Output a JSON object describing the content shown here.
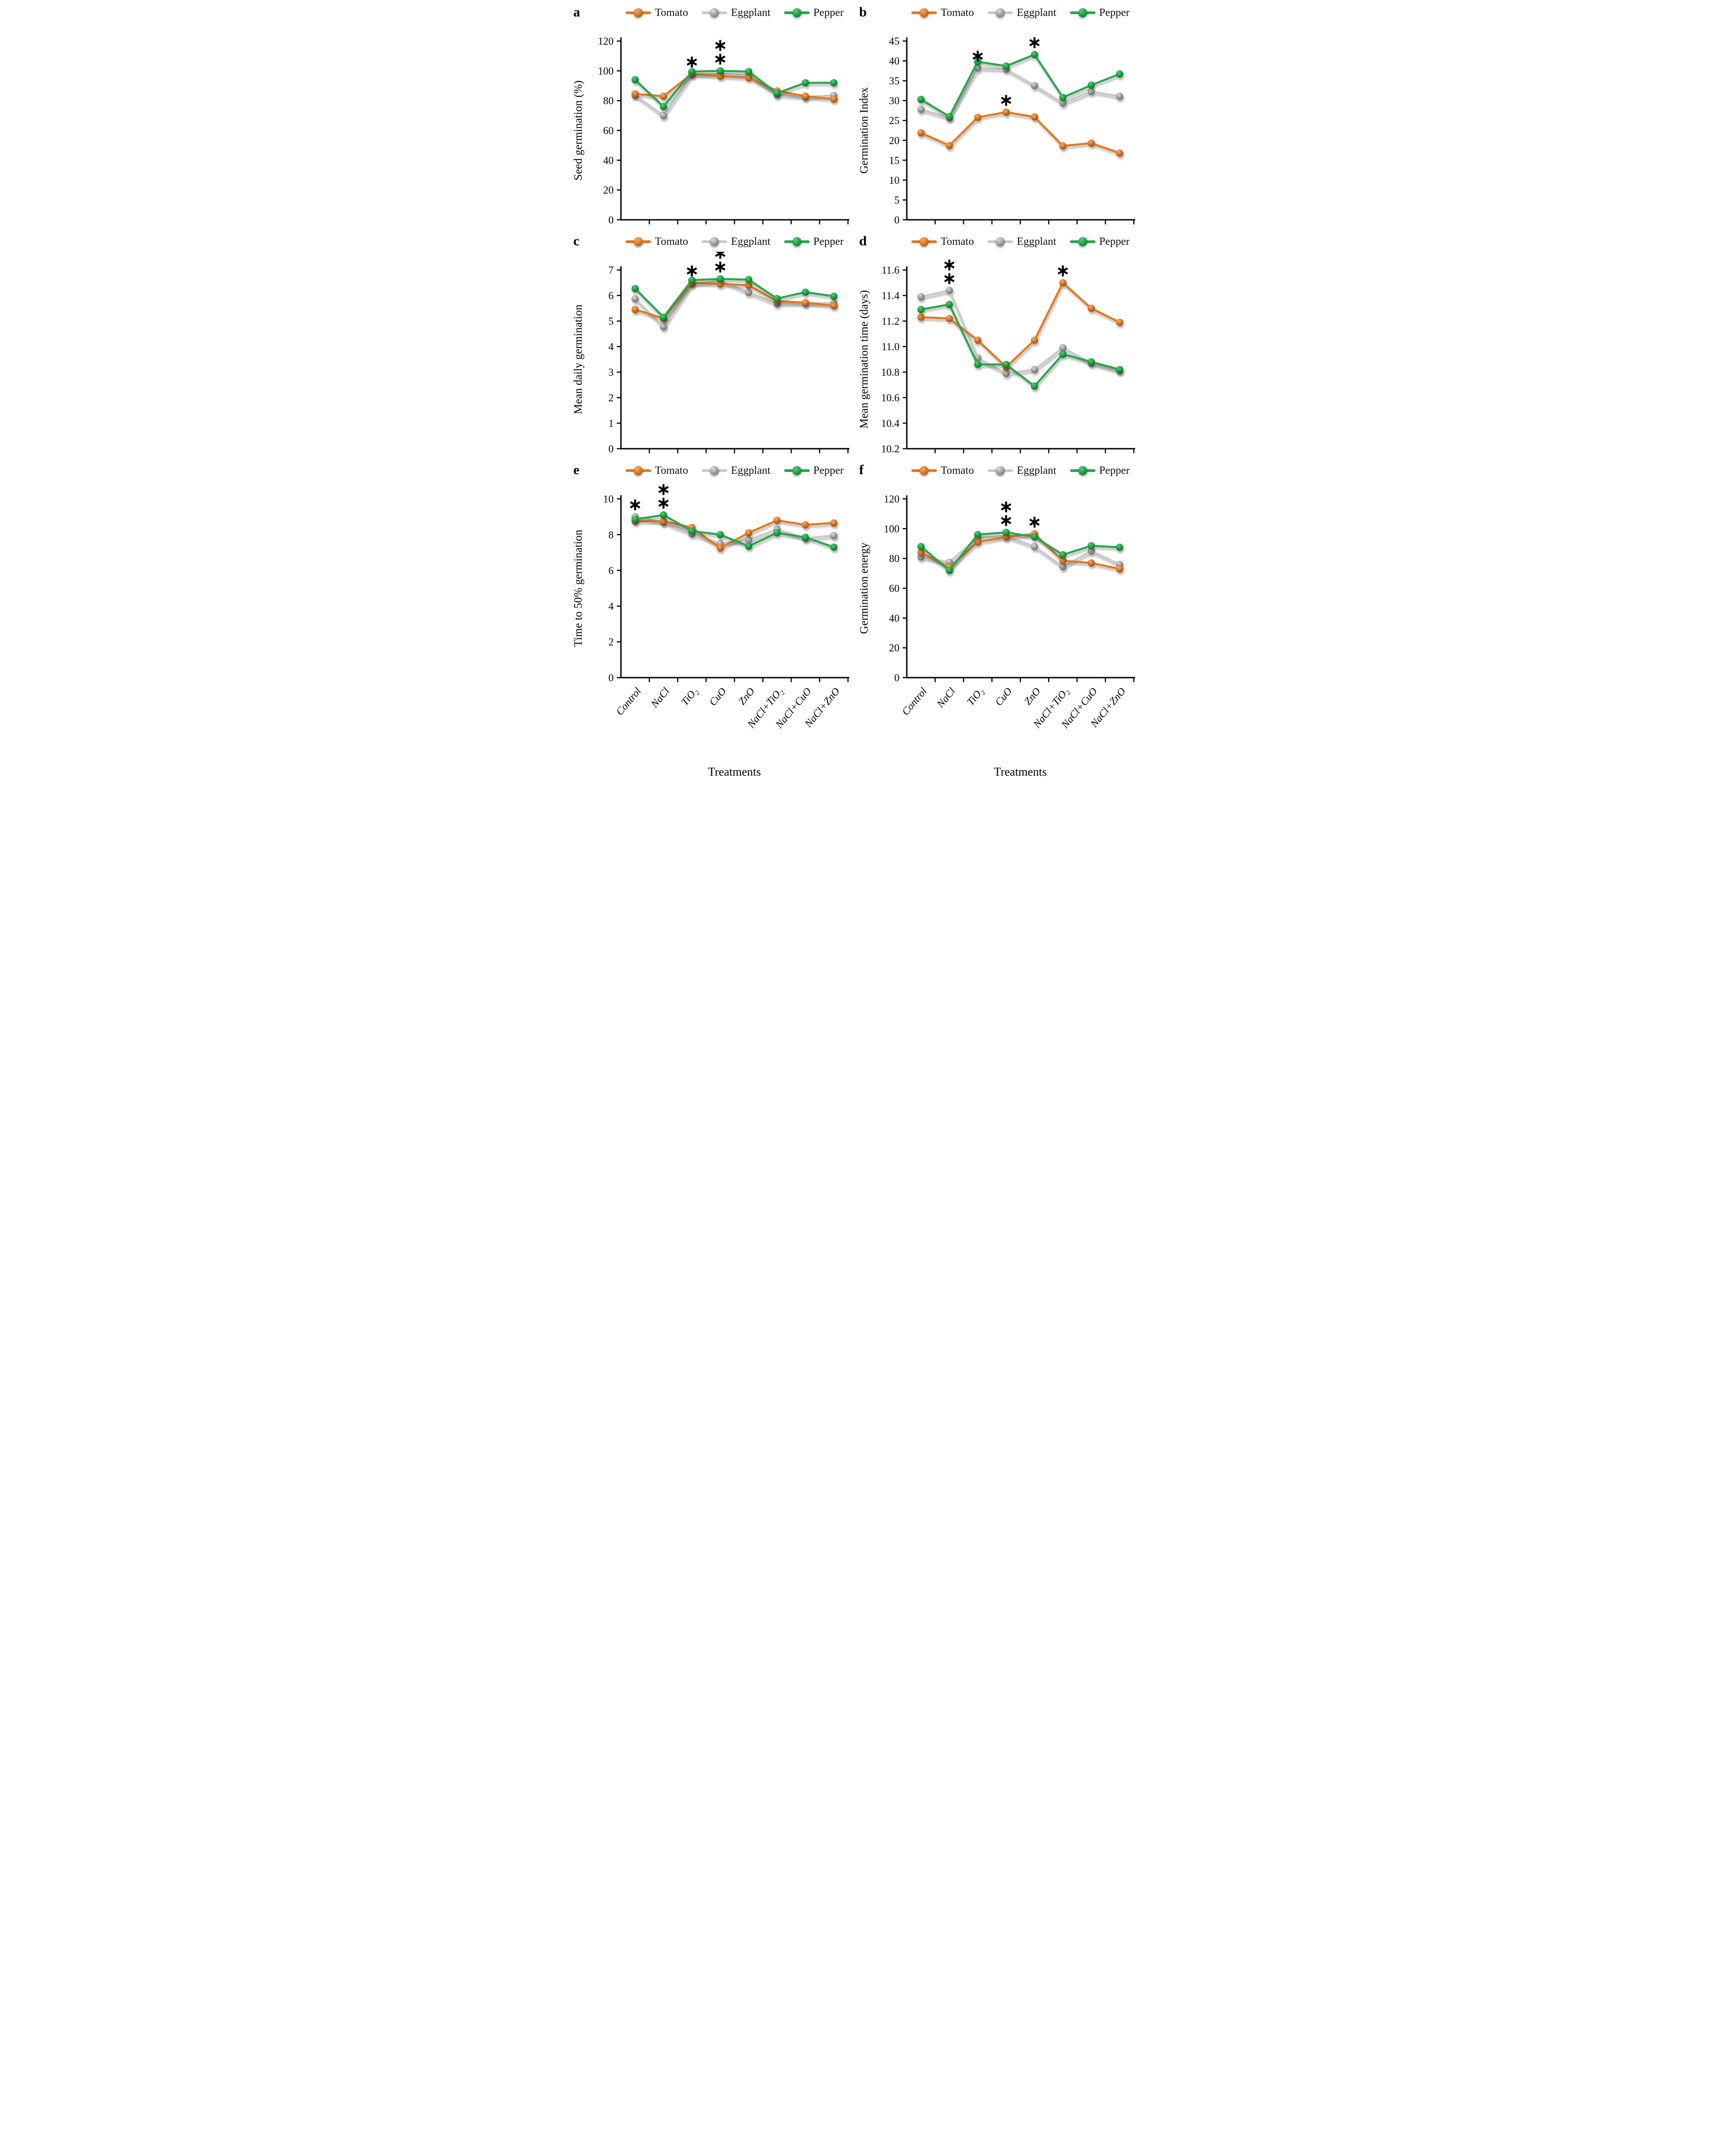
{
  "figure": {
    "xlabel": "Treatments",
    "categories": [
      "Control",
      "NaCl",
      "TiO₂",
      "CuO",
      "ZnO",
      "NaCl+TiO₂",
      "NaCl+CuO",
      "NaCl+ZnO"
    ],
    "legend": [
      "Tomato",
      "Eggplant",
      "Pepper"
    ],
    "asterisk_glyph": "∗",
    "colors": {
      "axis": "#000000",
      "text": "#111111",
      "tomato": {
        "line": "#E2791F",
        "marker_hi": "#F4AC6B",
        "marker_mid": "#D9731F",
        "marker_dark": "#8F4710",
        "asterisk": "#E2791F"
      },
      "eggplant": {
        "line": "#C9C9C9",
        "marker_hi": "#DCDCDC",
        "marker_mid": "#999999",
        "marker_dark": "#666666",
        "asterisk": "#A6A6A6"
      },
      "pepper": {
        "line": "#29A64B",
        "marker_hi": "#5FC77F",
        "marker_mid": "#17A03C",
        "marker_dark": "#0B6E27",
        "asterisk": "#2BA24A"
      }
    }
  },
  "chart_data": [
    {
      "panel": "a",
      "type": "line",
      "title": "",
      "ylabel": "Seed germination (%)",
      "ylim": [
        0,
        120
      ],
      "yticks": [
        0,
        20,
        40,
        60,
        80,
        100,
        120
      ],
      "ytick_labels": [
        "0",
        "20",
        "40",
        "60",
        "80",
        "100",
        "120"
      ],
      "show_x_labels": false,
      "series": [
        {
          "name": "Tomato",
          "color_key": "tomato",
          "values": [
            84.5,
            83,
            98,
            96.5,
            95.5,
            86.5,
            83,
            81
          ]
        },
        {
          "name": "Eggplant",
          "color_key": "eggplant",
          "values": [
            83.5,
            70,
            97.5,
            98,
            97,
            84,
            82.5,
            83.5
          ]
        },
        {
          "name": "Pepper",
          "color_key": "pepper",
          "values": [
            94,
            76,
            99.5,
            100,
            99.5,
            85,
            92,
            92
          ]
        }
      ],
      "annotations": [
        {
          "category": "TiO₂",
          "cat_index": 2,
          "stack": [
            "tomato"
          ]
        },
        {
          "category": "CuO",
          "cat_index": 3,
          "stack": [
            "eggplant",
            "pepper"
          ]
        }
      ]
    },
    {
      "panel": "b",
      "type": "line",
      "title": "",
      "ylabel": "Germination Index",
      "ylim": [
        0,
        45
      ],
      "yticks": [
        0,
        5,
        10,
        15,
        20,
        25,
        30,
        35,
        40,
        45
      ],
      "ytick_labels": [
        "0",
        "5",
        "10",
        "15",
        "20",
        "25",
        "30",
        "35",
        "40",
        "45"
      ],
      "show_x_labels": false,
      "series": [
        {
          "name": "Tomato",
          "color_key": "tomato",
          "values": [
            21.9,
            18.7,
            25.8,
            27.1,
            25.9,
            18.6,
            19.3,
            16.8
          ]
        },
        {
          "name": "Eggplant",
          "color_key": "eggplant",
          "values": [
            27.8,
            25.7,
            38.2,
            37.9,
            33.8,
            29.4,
            32.3,
            31.1
          ]
        },
        {
          "name": "Pepper",
          "color_key": "pepper",
          "values": [
            30.3,
            26.0,
            39.8,
            38.7,
            41.6,
            30.8,
            33.9,
            36.7
          ]
        }
      ],
      "annotations": [
        {
          "category": "TiO₂",
          "cat_index": 2,
          "stack": [
            "eggplant"
          ]
        },
        {
          "category": "CuO",
          "cat_index": 3,
          "stack": [
            "tomato"
          ]
        },
        {
          "category": "ZnO",
          "cat_index": 4,
          "stack": [
            "pepper"
          ]
        }
      ]
    },
    {
      "panel": "c",
      "type": "line",
      "title": "",
      "ylabel": "Mean daily germination",
      "ylim": [
        0,
        7
      ],
      "yticks": [
        0,
        1,
        2,
        3,
        4,
        5,
        6,
        7
      ],
      "ytick_labels": [
        "0",
        "1",
        "2",
        "3",
        "4",
        "5",
        "6",
        "7"
      ],
      "show_x_labels": false,
      "series": [
        {
          "name": "Tomato",
          "color_key": "tomato",
          "values": [
            5.45,
            5.1,
            6.5,
            6.45,
            6.4,
            5.78,
            5.72,
            5.6
          ]
        },
        {
          "name": "Eggplant",
          "color_key": "eggplant",
          "values": [
            5.87,
            4.78,
            6.45,
            6.58,
            6.12,
            5.68,
            5.7,
            5.7
          ]
        },
        {
          "name": "Pepper",
          "color_key": "pepper",
          "values": [
            6.27,
            5.15,
            6.6,
            6.65,
            6.62,
            5.88,
            6.13,
            5.97
          ]
        }
      ],
      "annotations": [
        {
          "category": "TiO₂",
          "cat_index": 2,
          "stack": [
            "tomato"
          ]
        },
        {
          "category": "CuO",
          "cat_index": 3,
          "stack": [
            "eggplant",
            "pepper"
          ]
        }
      ]
    },
    {
      "panel": "d",
      "type": "line",
      "title": "",
      "ylabel": "Mean germination time (days)",
      "ylim": [
        10.2,
        11.6
      ],
      "yticks": [
        10.2,
        10.4,
        10.6,
        10.8,
        11.0,
        11.2,
        11.4,
        11.6
      ],
      "ytick_labels": [
        "10.2",
        "10.4",
        "10.6",
        "10.8",
        "11.0",
        "11.2",
        "11.4",
        "11.6"
      ],
      "show_x_labels": false,
      "series": [
        {
          "name": "Tomato",
          "color_key": "tomato",
          "values": [
            11.23,
            11.22,
            11.05,
            10.84,
            11.05,
            11.5,
            11.3,
            11.19
          ]
        },
        {
          "name": "Eggplant",
          "color_key": "eggplant",
          "values": [
            11.39,
            11.44,
            10.91,
            10.79,
            10.82,
            10.99,
            10.87,
            10.81
          ]
        },
        {
          "name": "Pepper",
          "color_key": "pepper",
          "values": [
            11.29,
            11.33,
            10.86,
            10.86,
            10.69,
            10.94,
            10.88,
            10.82
          ]
        }
      ],
      "annotations": [
        {
          "category": "NaCl",
          "cat_index": 1,
          "stack": [
            "eggplant",
            "pepper"
          ]
        },
        {
          "category": "NaCl+TiO₂",
          "cat_index": 5,
          "stack": [
            "tomato"
          ]
        }
      ]
    },
    {
      "panel": "e",
      "type": "line",
      "title": "",
      "ylabel": "Time to 50% germination",
      "ylim": [
        0,
        10
      ],
      "yticks": [
        0,
        2,
        4,
        6,
        8,
        10
      ],
      "ytick_labels": [
        "0",
        "2",
        "4",
        "6",
        "8",
        "10"
      ],
      "show_x_labels": true,
      "series": [
        {
          "name": "Tomato",
          "color_key": "tomato",
          "values": [
            8.75,
            8.75,
            8.4,
            7.25,
            8.1,
            8.8,
            8.55,
            8.65
          ]
        },
        {
          "name": "Eggplant",
          "color_key": "eggplant",
          "values": [
            9.0,
            8.7,
            8.05,
            7.5,
            7.7,
            8.3,
            7.8,
            7.95
          ]
        },
        {
          "name": "Pepper",
          "color_key": "pepper",
          "values": [
            8.85,
            9.1,
            8.2,
            8.0,
            7.35,
            8.1,
            7.85,
            7.3
          ]
        }
      ],
      "annotations": [
        {
          "category": "Control",
          "cat_index": 0,
          "stack": [
            "eggplant"
          ]
        },
        {
          "category": "NaCl",
          "cat_index": 1,
          "stack": [
            "tomato",
            "pepper"
          ]
        }
      ]
    },
    {
      "panel": "f",
      "type": "line",
      "title": "",
      "ylabel": "Germination energy",
      "ylim": [
        0,
        120
      ],
      "yticks": [
        0,
        20,
        40,
        60,
        80,
        100,
        120
      ],
      "ytick_labels": [
        "0",
        "20",
        "40",
        "60",
        "80",
        "100",
        "120"
      ],
      "show_x_labels": true,
      "series": [
        {
          "name": "Tomato",
          "color_key": "tomato",
          "values": [
            84,
            74,
            91,
            94.5,
            96.5,
            78.5,
            77,
            73
          ]
        },
        {
          "name": "Eggplant",
          "color_key": "eggplant",
          "values": [
            81,
            77.5,
            94,
            95,
            88,
            74.5,
            85,
            76
          ]
        },
        {
          "name": "Pepper",
          "color_key": "pepper",
          "values": [
            88,
            72,
            96,
            97.5,
            94.5,
            82.5,
            88.5,
            87.5
          ]
        }
      ],
      "annotations": [
        {
          "category": "CuO",
          "cat_index": 3,
          "stack": [
            "eggplant",
            "pepper"
          ]
        },
        {
          "category": "ZnO",
          "cat_index": 4,
          "stack": [
            "tomato"
          ]
        }
      ]
    }
  ]
}
